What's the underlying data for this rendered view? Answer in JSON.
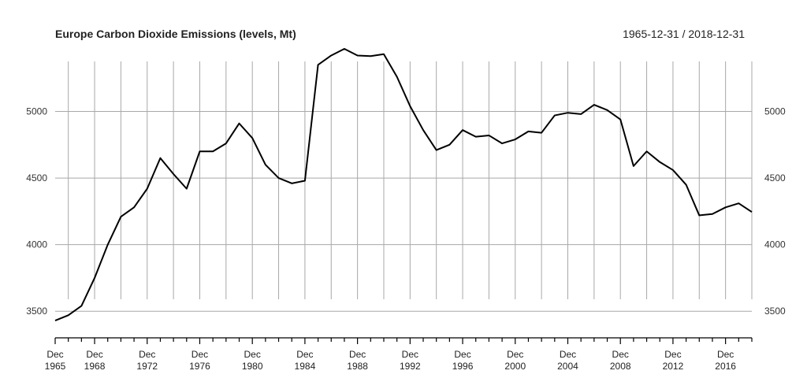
{
  "chart_data": {
    "type": "line",
    "title": "Europe Carbon Dioxide Emissions (levels, Mt)",
    "date_range": "1965-12-31 / 2018-12-31",
    "xlabel": "",
    "ylabel": "",
    "grid": true,
    "ylim": [
      3330,
      5470
    ],
    "xlim": [
      "1965-12-31",
      "2018-12-31"
    ],
    "y_ticks": [
      "3500",
      "4000",
      "4500",
      "5000"
    ],
    "x_tick_labels": [
      {
        "month": "Dec",
        "year": "1965"
      },
      {
        "month": "Dec",
        "year": "1968"
      },
      {
        "month": "Dec",
        "year": "1972"
      },
      {
        "month": "Dec",
        "year": "1976"
      },
      {
        "month": "Dec",
        "year": "1980"
      },
      {
        "month": "Dec",
        "year": "1984"
      },
      {
        "month": "Dec",
        "year": "1988"
      },
      {
        "month": "Dec",
        "year": "1992"
      },
      {
        "month": "Dec",
        "year": "1996"
      },
      {
        "month": "Dec",
        "year": "2000"
      },
      {
        "month": "Dec",
        "year": "2004"
      },
      {
        "month": "Dec",
        "year": "2008"
      },
      {
        "month": "Dec",
        "year": "2012"
      },
      {
        "month": "Dec",
        "year": "2016"
      }
    ],
    "series": [
      {
        "x": [
          1965,
          1966,
          1967,
          1968,
          1969,
          1970,
          1971,
          1972,
          1973,
          1974,
          1975,
          1976,
          1977,
          1978,
          1979,
          1980,
          1981,
          1982,
          1983,
          1984,
          1985,
          1986,
          1987,
          1988,
          1989,
          1990,
          1991,
          1992,
          1993,
          1994,
          1995,
          1996,
          1997,
          1998,
          1999,
          2000,
          2001,
          2002,
          2003,
          2004,
          2005,
          2006,
          2007,
          2008,
          2009,
          2010,
          2011,
          2012,
          2013,
          2014,
          2015,
          2016,
          2017,
          2018
        ],
        "values": [
          3430,
          3470,
          3540,
          3750,
          4000,
          4210,
          4280,
          4420,
          4650,
          4530,
          4420,
          4700,
          4700,
          4760,
          4910,
          4800,
          4600,
          4500,
          4460,
          4480,
          5350,
          5420,
          5470,
          5420,
          5415,
          5430,
          5260,
          5040,
          4860,
          4710,
          4750,
          4860,
          4810,
          4820,
          4760,
          4790,
          4850,
          4840,
          4970,
          4990,
          4980,
          5050,
          5010,
          4940,
          4590,
          4700,
          4620,
          4560,
          4450,
          4220,
          4230,
          4280,
          4310,
          4245
        ]
      }
    ],
    "colors": {
      "line": "#000000",
      "grid": "#a8a8a8"
    }
  }
}
